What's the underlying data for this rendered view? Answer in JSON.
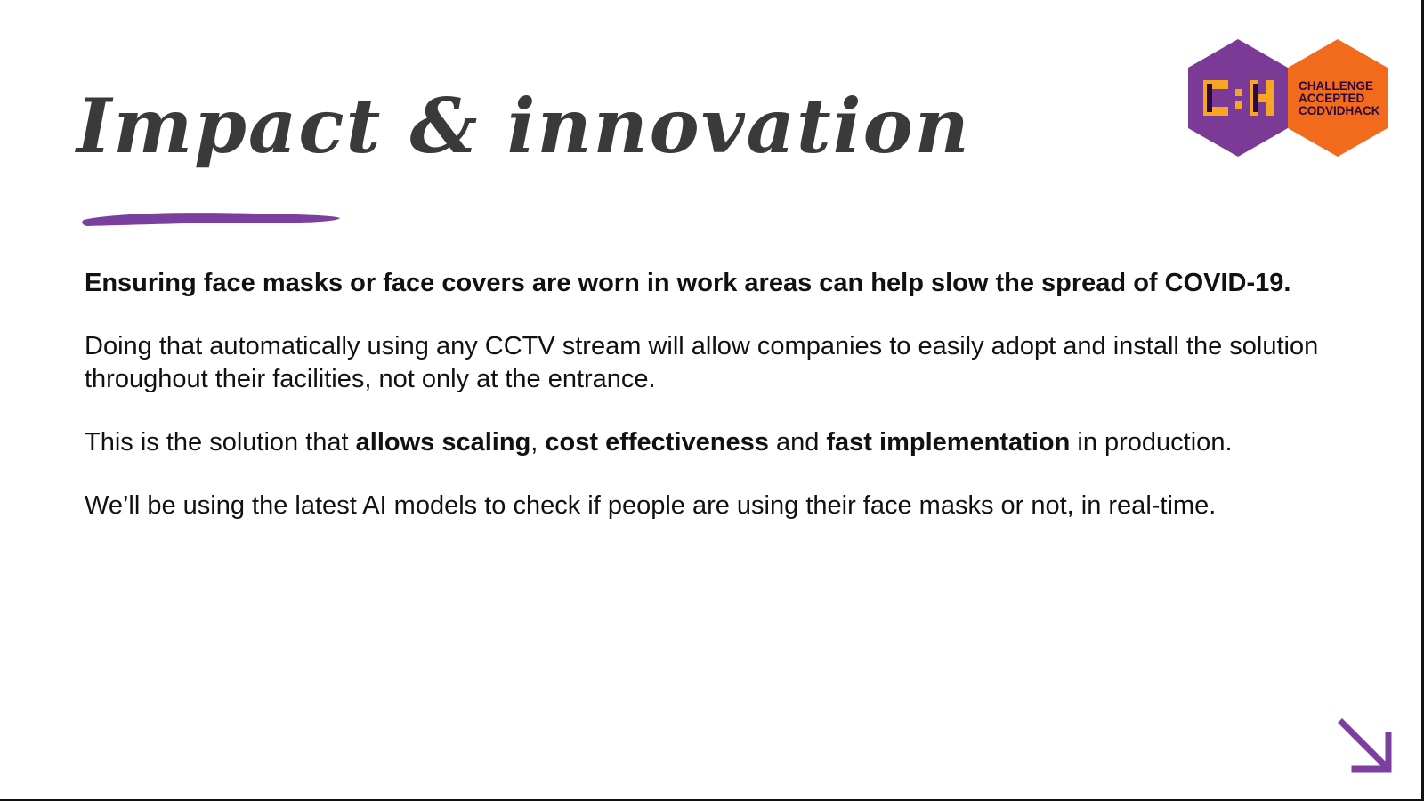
{
  "slide": {
    "title": "Impact & innovation",
    "accent_color": "#7b3fa0",
    "logo": {
      "lines": [
        "CHALLENGE",
        "ACCEPTED",
        "CODVIDHACK"
      ],
      "left_hex_color": "#7b3a96",
      "right_hex_color": "#f26b1d",
      "icon": "cube-glyph-icon"
    },
    "paragraphs": {
      "p1": "Ensuring face masks or face covers are worn in work areas can help slow the spread of COVID-19.",
      "p2": "Doing that automatically using any CCTV stream will allow companies to easily adopt and install the solution throughout their facilities, not only at the entrance.",
      "p3": {
        "t1": "This is the solution that ",
        "b1": "allows scaling",
        "t2": ", ",
        "b2": "cost effectiveness",
        "t3": " and ",
        "b3": "fast implementation",
        "t4": " in production."
      },
      "p4": "We’ll be using the latest AI models to check if people are using their face masks or not, in real-time."
    },
    "arrow_icon": "arrow-down-right-icon"
  }
}
